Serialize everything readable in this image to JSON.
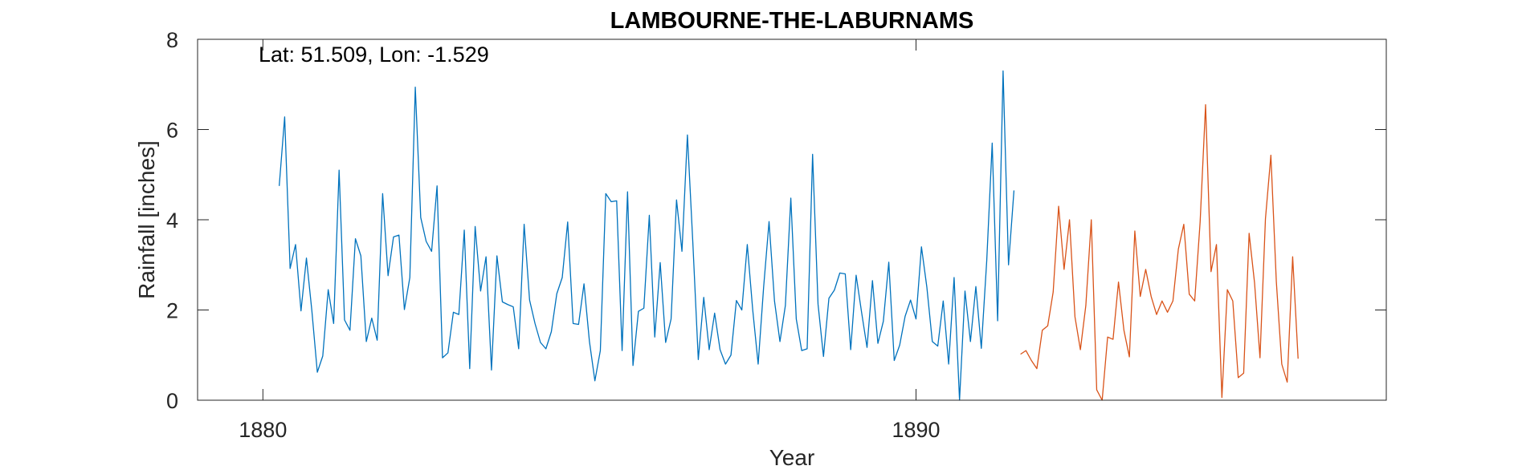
{
  "chart_data": {
    "type": "line",
    "title": "LAMBOURNE-THE-LABURNAMS",
    "xlabel": "Year",
    "ylabel": "Rainfall [inches]",
    "annotation": "Lat: 51.509, Lon: -1.529",
    "xlim": [
      1879.0,
      1897.2
    ],
    "ylim": [
      0,
      8
    ],
    "xticks": [
      1880,
      1890
    ],
    "yticks": [
      0,
      2,
      4,
      6,
      8
    ],
    "grid": false,
    "legend": "none",
    "colors": {
      "series1": "#0072BD",
      "series2": "#D95319",
      "axis": "#262626"
    },
    "series": [
      {
        "start": 1880.25,
        "step": 0.08333,
        "values": [
          4.75,
          6.28,
          2.92,
          3.45,
          1.98,
          3.15,
          1.98,
          0.62,
          0.98,
          2.45,
          1.7,
          5.1,
          1.78,
          1.55,
          3.58,
          3.2,
          1.3,
          1.82,
          1.33,
          4.58,
          2.76,
          3.62,
          3.66,
          2.01,
          2.72,
          6.94,
          4.05,
          3.52,
          3.3,
          4.75,
          0.94,
          1.05,
          1.95,
          1.9,
          3.77,
          0.7,
          3.85,
          2.42,
          3.18,
          0.67,
          3.2,
          2.18,
          2.12,
          2.07,
          1.14,
          3.9,
          2.22,
          1.7,
          1.28,
          1.14,
          1.52,
          2.36,
          2.72,
          3.95,
          1.7,
          1.68,
          2.58,
          1.3,
          0.43,
          1.1,
          4.58,
          4.4,
          4.42,
          1.1,
          4.62,
          0.77,
          1.97,
          2.04,
          4.1,
          1.4,
          3.05,
          1.28,
          1.8,
          4.44,
          3.3,
          5.88,
          3.48,
          0.9,
          2.28,
          1.12,
          1.93,
          1.12,
          0.8,
          1.0,
          2.21,
          2.0,
          3.45,
          2.0,
          0.8,
          2.5,
          3.96,
          2.2,
          1.3,
          2.1,
          4.48,
          1.8,
          1.1,
          1.14,
          5.45,
          2.13,
          0.97,
          2.26,
          2.44,
          2.82,
          2.8,
          1.12,
          2.77,
          1.95,
          1.17,
          2.65,
          1.26,
          1.75,
          3.06,
          0.88,
          1.22,
          1.86,
          2.22,
          1.8,
          3.4,
          2.5,
          1.3,
          1.2,
          2.2,
          0.8,
          2.72,
          0.0,
          2.42,
          1.3,
          2.52,
          1.15,
          3.1,
          5.7,
          1.76,
          7.3,
          3.0,
          4.65
        ]
      },
      {
        "start": 1891.6,
        "step": 0.08333,
        "values": [
          1.02,
          1.1,
          0.88,
          0.7,
          1.55,
          1.65,
          2.4,
          4.3,
          2.9,
          4.0,
          1.85,
          1.12,
          2.1,
          4.0,
          0.23,
          0.0,
          1.4,
          1.35,
          2.62,
          1.55,
          0.96,
          3.75,
          2.3,
          2.9,
          2.3,
          1.9,
          2.2,
          1.95,
          2.2,
          3.35,
          3.9,
          2.35,
          2.2,
          3.95,
          6.55,
          2.85,
          3.45,
          0.06,
          2.45,
          2.2,
          0.5,
          0.6,
          3.7,
          2.6,
          0.94,
          4.02,
          5.43,
          2.63,
          0.8,
          0.4,
          3.18,
          0.92
        ]
      }
    ]
  }
}
